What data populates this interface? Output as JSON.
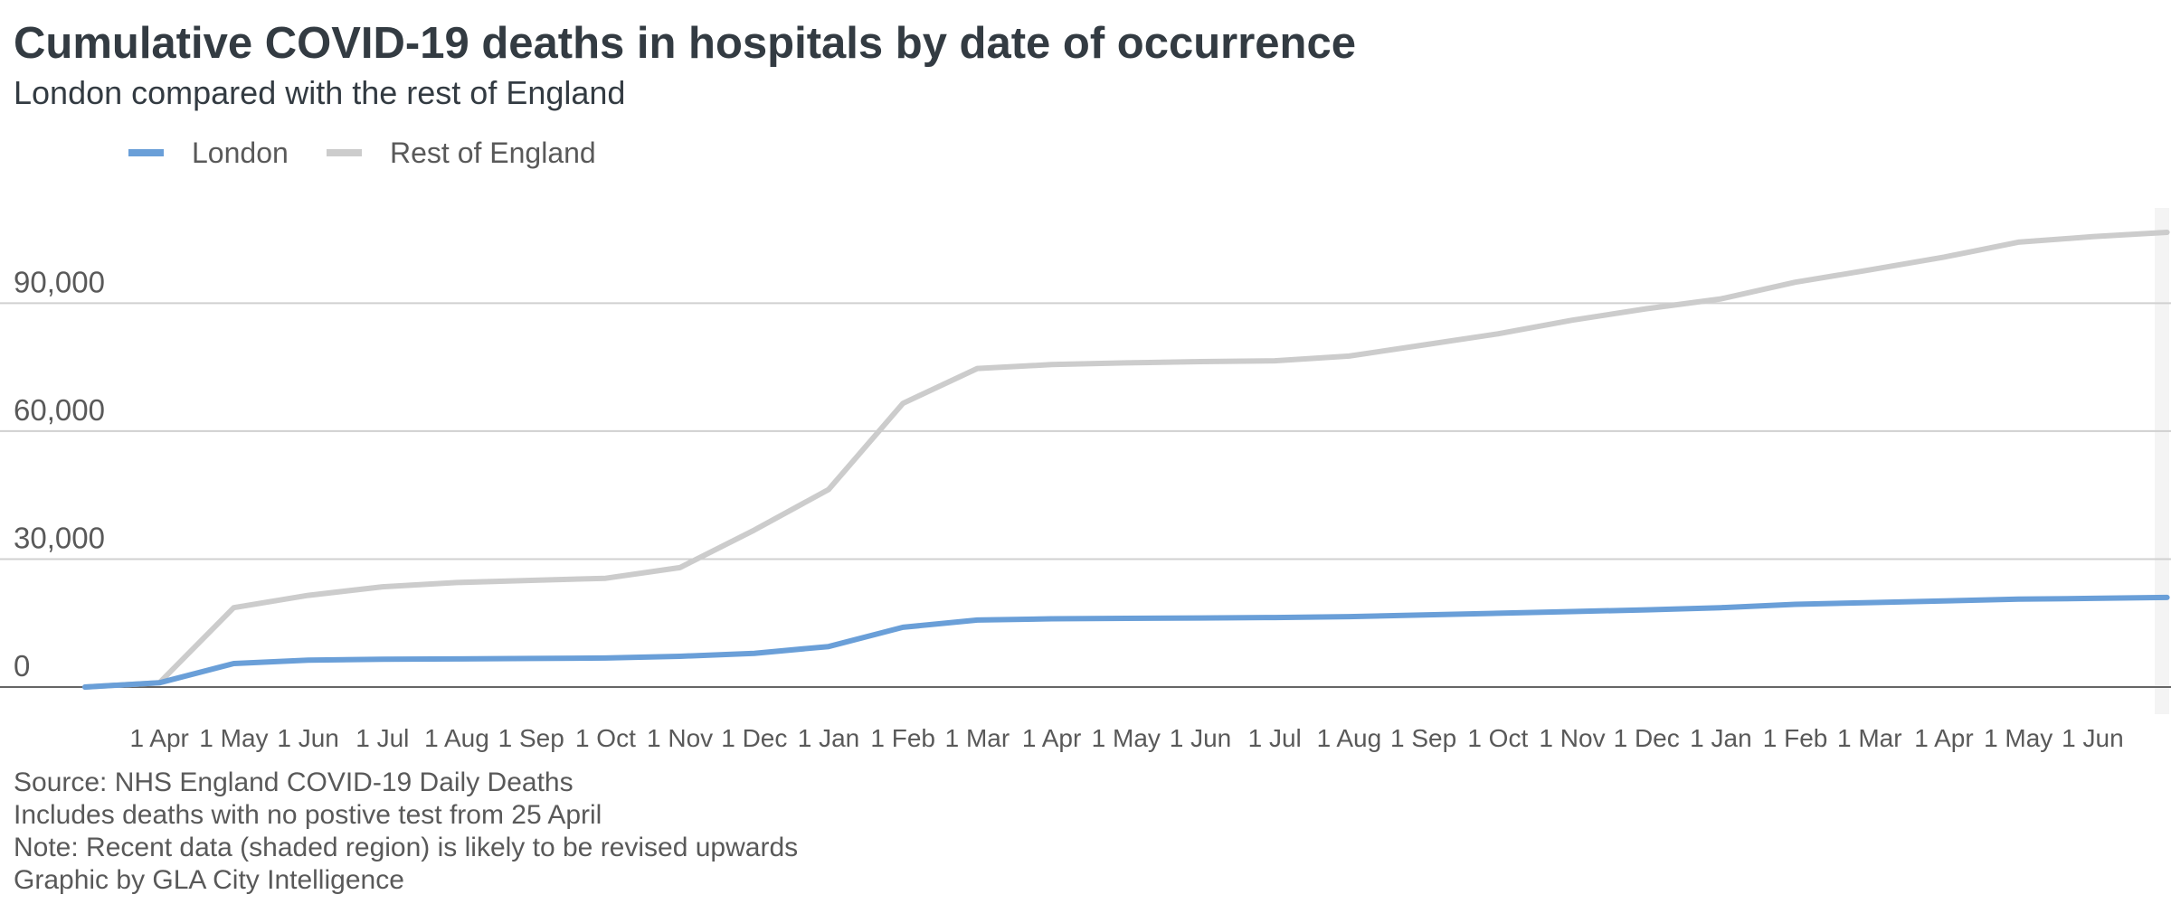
{
  "chart_data": {
    "type": "line",
    "title": "Cumulative COVID-19 deaths in hospitals by date of occurrence",
    "subtitle": "London compared with the rest of England",
    "categories": [
      null,
      "1 Apr",
      "1 May",
      "1 Jun",
      "1 Jul",
      "1 Aug",
      "1 Sep",
      "1 Oct",
      "1 Nov",
      "1 Dec",
      "1 Jan",
      "1 Feb",
      "1 Mar",
      "1 Apr",
      "1 May",
      "1 Jun",
      "1 Jul",
      "1 Aug",
      "1 Sep",
      "1 Oct",
      "1 Nov",
      "1 Dec",
      "1 Jan",
      "1 Feb",
      "1 Mar",
      "1 Apr",
      "1 May",
      "1 Jun",
      null
    ],
    "series": [
      {
        "name": "London",
        "color": "#6a9fd8",
        "values": [
          0,
          1000,
          5500,
          6300,
          6500,
          6600,
          6700,
          6800,
          7200,
          7900,
          9500,
          14000,
          15700,
          16000,
          16100,
          16200,
          16300,
          16500,
          16900,
          17300,
          17700,
          18100,
          18600,
          19400,
          19800,
          20200,
          20600,
          20800,
          21000
        ]
      },
      {
        "name": "Rest of England",
        "color": "#cccccc",
        "values": [
          0,
          1000,
          18600,
          21500,
          23500,
          24500,
          25000,
          25500,
          28000,
          36800,
          46300,
          66500,
          74700,
          75600,
          76000,
          76300,
          76500,
          77600,
          80200,
          82800,
          86000,
          88700,
          91000,
          94900,
          97800,
          100800,
          104300,
          105600,
          106600
        ]
      }
    ],
    "ylim": [
      0,
      110000
    ],
    "yticks": [
      0,
      {
        "value": 30000,
        "label": "30,000"
      },
      {
        "value": 60000,
        "label": "60,000"
      },
      {
        "value": 90000,
        "label": "90,000"
      }
    ],
    "grid": true,
    "legend": "top-left",
    "notes": [
      "Source: NHS England COVID-19 Daily Deaths",
      "Includes deaths with no postive test from 25 April",
      "Note: Recent data (shaded region) is likely to be revised upwards",
      "Graphic by GLA City Intelligence"
    ]
  }
}
